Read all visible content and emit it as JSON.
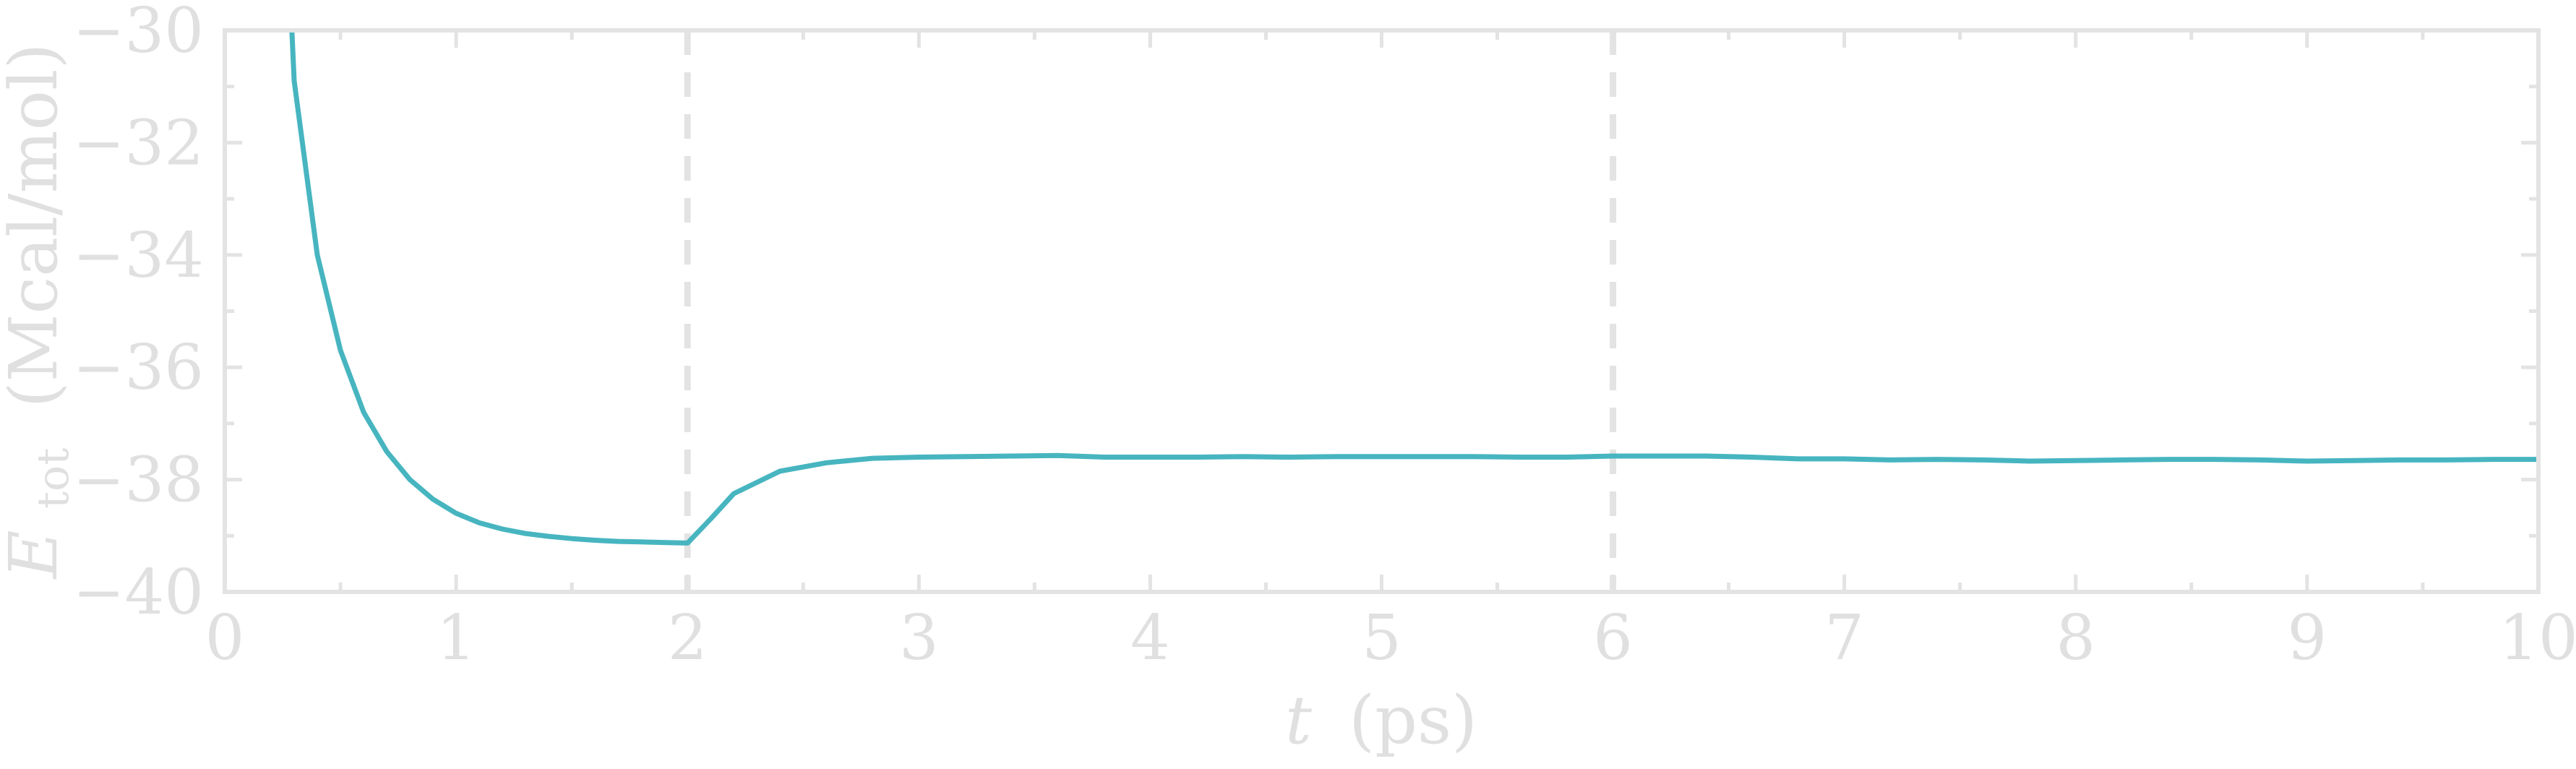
{
  "chart_data": {
    "type": "line",
    "title": "",
    "xlabel": {
      "var": "t",
      "unit": "(ps)"
    },
    "ylabel": {
      "var": "E",
      "sub": "tot",
      "unit": "(Mcal/mol)"
    },
    "xlim": [
      0,
      10
    ],
    "ylim": [
      -40,
      -30
    ],
    "xticks": [
      0,
      1,
      2,
      3,
      4,
      5,
      6,
      7,
      8,
      9,
      10
    ],
    "yticks": [
      -40,
      -38,
      -36,
      -34,
      -32,
      -30
    ],
    "ytick_labels": [
      "−40",
      "−38",
      "−36",
      "−34",
      "−32",
      "−30"
    ],
    "xtick_labels": [
      "0",
      "1",
      "2",
      "3",
      "4",
      "5",
      "6",
      "7",
      "8",
      "9",
      "10"
    ],
    "grid": false,
    "vlines": [
      2,
      6
    ],
    "colors": {
      "line": "#47b5c0",
      "axes": "#e3e3e3",
      "vline": "#e3e3e3"
    },
    "series": [
      {
        "x": [
          0.29,
          0.3,
          0.4,
          0.5,
          0.6,
          0.7,
          0.8,
          0.9,
          1.0,
          1.1,
          1.2,
          1.3,
          1.4,
          1.5,
          1.6,
          1.7,
          1.8,
          1.9,
          2.0,
          2.1,
          2.2,
          2.4,
          2.6,
          2.8,
          3.0,
          3.2,
          3.4,
          3.6,
          3.8,
          4.0,
          4.2,
          4.4,
          4.6,
          4.8,
          5.0,
          5.2,
          5.4,
          5.6,
          5.8,
          6.0,
          6.2,
          6.4,
          6.6,
          6.8,
          7.0,
          7.2,
          7.4,
          7.6,
          7.8,
          8.0,
          8.2,
          8.4,
          8.6,
          8.8,
          9.0,
          9.2,
          9.4,
          9.6,
          9.8,
          10.0
        ],
        "y": [
          -30.0,
          -30.9,
          -34.0,
          -35.7,
          -36.8,
          -37.5,
          -38.0,
          -38.35,
          -38.6,
          -38.77,
          -38.88,
          -38.96,
          -39.01,
          -39.05,
          -39.08,
          -39.1,
          -39.11,
          -39.12,
          -39.13,
          -38.7,
          -38.25,
          -37.85,
          -37.7,
          -37.62,
          -37.6,
          -37.59,
          -37.58,
          -37.57,
          -37.6,
          -37.6,
          -37.6,
          -37.59,
          -37.6,
          -37.59,
          -37.59,
          -37.59,
          -37.59,
          -37.6,
          -37.6,
          -37.58,
          -37.58,
          -37.58,
          -37.6,
          -37.63,
          -37.63,
          -37.65,
          -37.64,
          -37.65,
          -37.67,
          -37.66,
          -37.65,
          -37.64,
          -37.64,
          -37.65,
          -37.67,
          -37.66,
          -37.65,
          -37.65,
          -37.64,
          -37.64
        ]
      }
    ]
  }
}
